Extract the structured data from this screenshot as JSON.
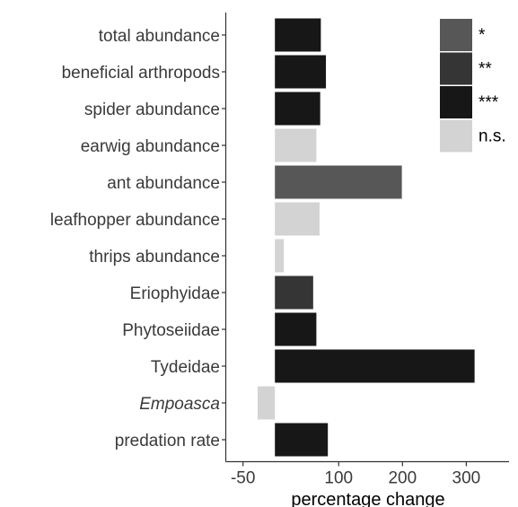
{
  "chart_data": {
    "type": "bar",
    "orientation": "horizontal",
    "title": "",
    "xlabel": "percentage change",
    "ylabel": "",
    "xlim": [
      -77,
      367
    ],
    "xticks": [
      -50,
      100,
      200,
      300
    ],
    "xtick_labels": [
      "-50",
      "100",
      "200",
      "300"
    ],
    "grid": false,
    "legend_position": "top-right",
    "categories": [
      {
        "label": "total abundance",
        "italic": false
      },
      {
        "label": "beneficial arthropods",
        "italic": false
      },
      {
        "label": "spider abundance",
        "italic": false
      },
      {
        "label": "earwig abundance",
        "italic": false
      },
      {
        "label": "ant abundance",
        "italic": false
      },
      {
        "label": "leafhopper abundance",
        "italic": false
      },
      {
        "label": "thrips abundance",
        "italic": false
      },
      {
        "label": "Eriophyidae",
        "italic": false
      },
      {
        "label": "Phytoseiidae",
        "italic": false
      },
      {
        "label": "Tydeidae",
        "italic": false
      },
      {
        "label": "Empoasca",
        "italic": true
      },
      {
        "label": "predation rate",
        "italic": false
      }
    ],
    "values": [
      72,
      80,
      71,
      65,
      199,
      70,
      14,
      60,
      65,
      313,
      -27,
      83
    ],
    "significance": [
      "***",
      "***",
      "***",
      "n.s.",
      "*",
      "n.s.",
      "n.s.",
      "**",
      "***",
      "***",
      "n.s.",
      "***"
    ],
    "legend": [
      {
        "label": "*",
        "color": "#575757"
      },
      {
        "label": "**",
        "color": "#353535"
      },
      {
        "label": "***",
        "color": "#171717"
      },
      {
        "label": "n.s.",
        "color": "#d3d3d3"
      }
    ]
  }
}
